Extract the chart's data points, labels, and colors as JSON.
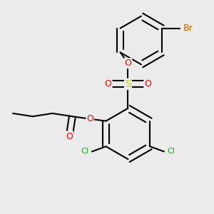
{
  "background_color": "#ebebeb",
  "bond_color": "#000000",
  "bond_width": 1.5,
  "atom_colors": {
    "O": "#ff0000",
    "S": "#cccc00",
    "Cl": "#00bb00",
    "Br": "#cc6600",
    "C": "#000000"
  },
  "figsize": [
    3.0,
    3.0
  ],
  "dpi": 100,
  "xlim": [
    -1.8,
    1.5
  ],
  "ylim": [
    -1.6,
    1.6
  ]
}
